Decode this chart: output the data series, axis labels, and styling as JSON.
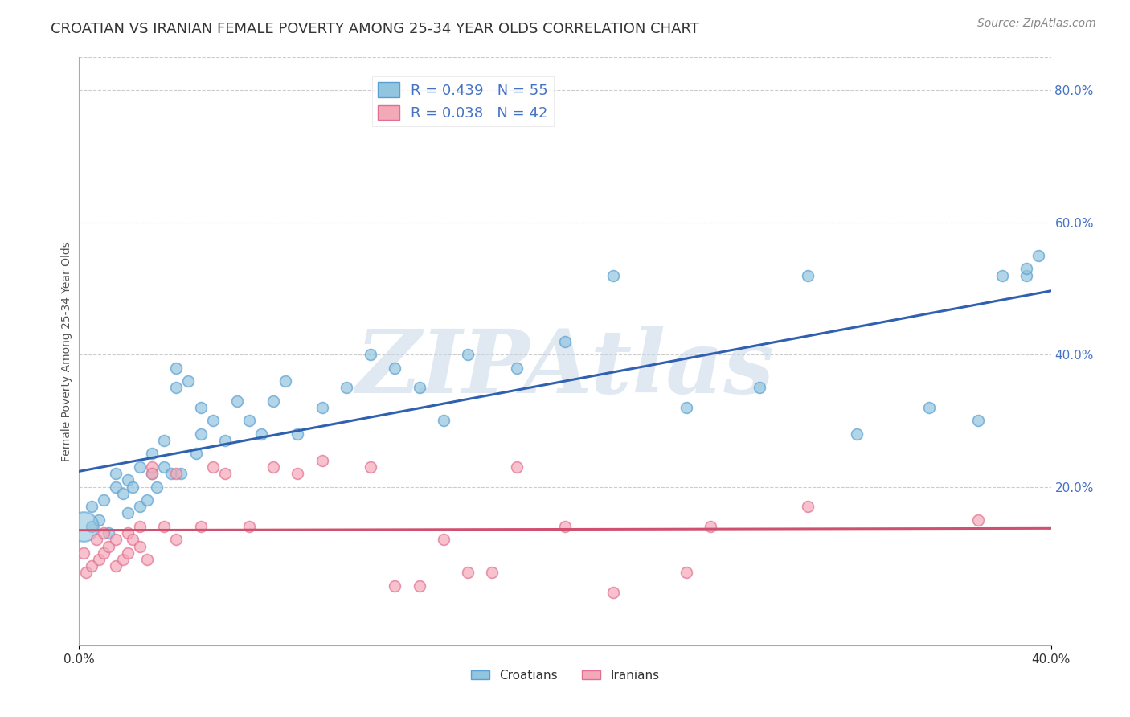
{
  "title": "CROATIAN VS IRANIAN FEMALE POVERTY AMONG 25-34 YEAR OLDS CORRELATION CHART",
  "source": "Source: ZipAtlas.com",
  "ylabel": "Female Poverty Among 25-34 Year Olds",
  "xlim": [
    0.0,
    0.4
  ],
  "ylim": [
    -0.04,
    0.85
  ],
  "xticks": [
    0.0,
    0.4
  ],
  "yticks_right": [
    0.2,
    0.4,
    0.6,
    0.8
  ],
  "croatian_color": "#92c5de",
  "croatian_edge": "#5a9fd4",
  "iranian_color": "#f4a9b8",
  "iranian_edge": "#e07090",
  "trendline_blue": "#3060b0",
  "trendline_pink": "#d05070",
  "croatian_R": 0.439,
  "croatian_N": 55,
  "iranian_R": 0.038,
  "iranian_N": 42,
  "bg_color": "#ffffff",
  "grid_color": "#cccccc",
  "watermark": "ZIPAtlas",
  "croatian_x": [
    0.005,
    0.005,
    0.008,
    0.01,
    0.012,
    0.015,
    0.015,
    0.018,
    0.02,
    0.02,
    0.022,
    0.025,
    0.025,
    0.028,
    0.03,
    0.03,
    0.032,
    0.035,
    0.035,
    0.038,
    0.04,
    0.04,
    0.042,
    0.045,
    0.048,
    0.05,
    0.05,
    0.055,
    0.06,
    0.065,
    0.07,
    0.075,
    0.08,
    0.085,
    0.09,
    0.1,
    0.11,
    0.12,
    0.13,
    0.14,
    0.15,
    0.16,
    0.18,
    0.2,
    0.22,
    0.25,
    0.28,
    0.3,
    0.32,
    0.35,
    0.37,
    0.38,
    0.39,
    0.39,
    0.395
  ],
  "croatian_y": [
    0.14,
    0.17,
    0.15,
    0.18,
    0.13,
    0.2,
    0.22,
    0.19,
    0.16,
    0.21,
    0.2,
    0.17,
    0.23,
    0.18,
    0.22,
    0.25,
    0.2,
    0.23,
    0.27,
    0.22,
    0.35,
    0.38,
    0.22,
    0.36,
    0.25,
    0.28,
    0.32,
    0.3,
    0.27,
    0.33,
    0.3,
    0.28,
    0.33,
    0.36,
    0.28,
    0.32,
    0.35,
    0.4,
    0.38,
    0.35,
    0.3,
    0.4,
    0.38,
    0.42,
    0.52,
    0.32,
    0.35,
    0.52,
    0.28,
    0.32,
    0.3,
    0.52,
    0.52,
    0.53,
    0.55
  ],
  "croatian_big_x": [
    0.002
  ],
  "croatian_big_y": [
    0.14
  ],
  "croatian_big_size": 700,
  "iranian_x": [
    0.002,
    0.003,
    0.005,
    0.007,
    0.008,
    0.01,
    0.01,
    0.012,
    0.015,
    0.015,
    0.018,
    0.02,
    0.02,
    0.022,
    0.025,
    0.025,
    0.028,
    0.03,
    0.03,
    0.035,
    0.04,
    0.04,
    0.05,
    0.055,
    0.06,
    0.07,
    0.08,
    0.09,
    0.1,
    0.12,
    0.13,
    0.14,
    0.15,
    0.16,
    0.17,
    0.18,
    0.2,
    0.22,
    0.25,
    0.26,
    0.3,
    0.37
  ],
  "iranian_y": [
    0.1,
    0.07,
    0.08,
    0.12,
    0.09,
    0.13,
    0.1,
    0.11,
    0.08,
    0.12,
    0.09,
    0.13,
    0.1,
    0.12,
    0.14,
    0.11,
    0.09,
    0.23,
    0.22,
    0.14,
    0.12,
    0.22,
    0.14,
    0.23,
    0.22,
    0.14,
    0.23,
    0.22,
    0.24,
    0.23,
    0.05,
    0.05,
    0.12,
    0.07,
    0.07,
    0.23,
    0.14,
    0.04,
    0.07,
    0.14,
    0.17,
    0.15
  ],
  "marker_size": 100,
  "title_fontsize": 13,
  "axis_label_fontsize": 10,
  "tick_fontsize": 11,
  "legend_fontsize": 13,
  "source_fontsize": 10
}
